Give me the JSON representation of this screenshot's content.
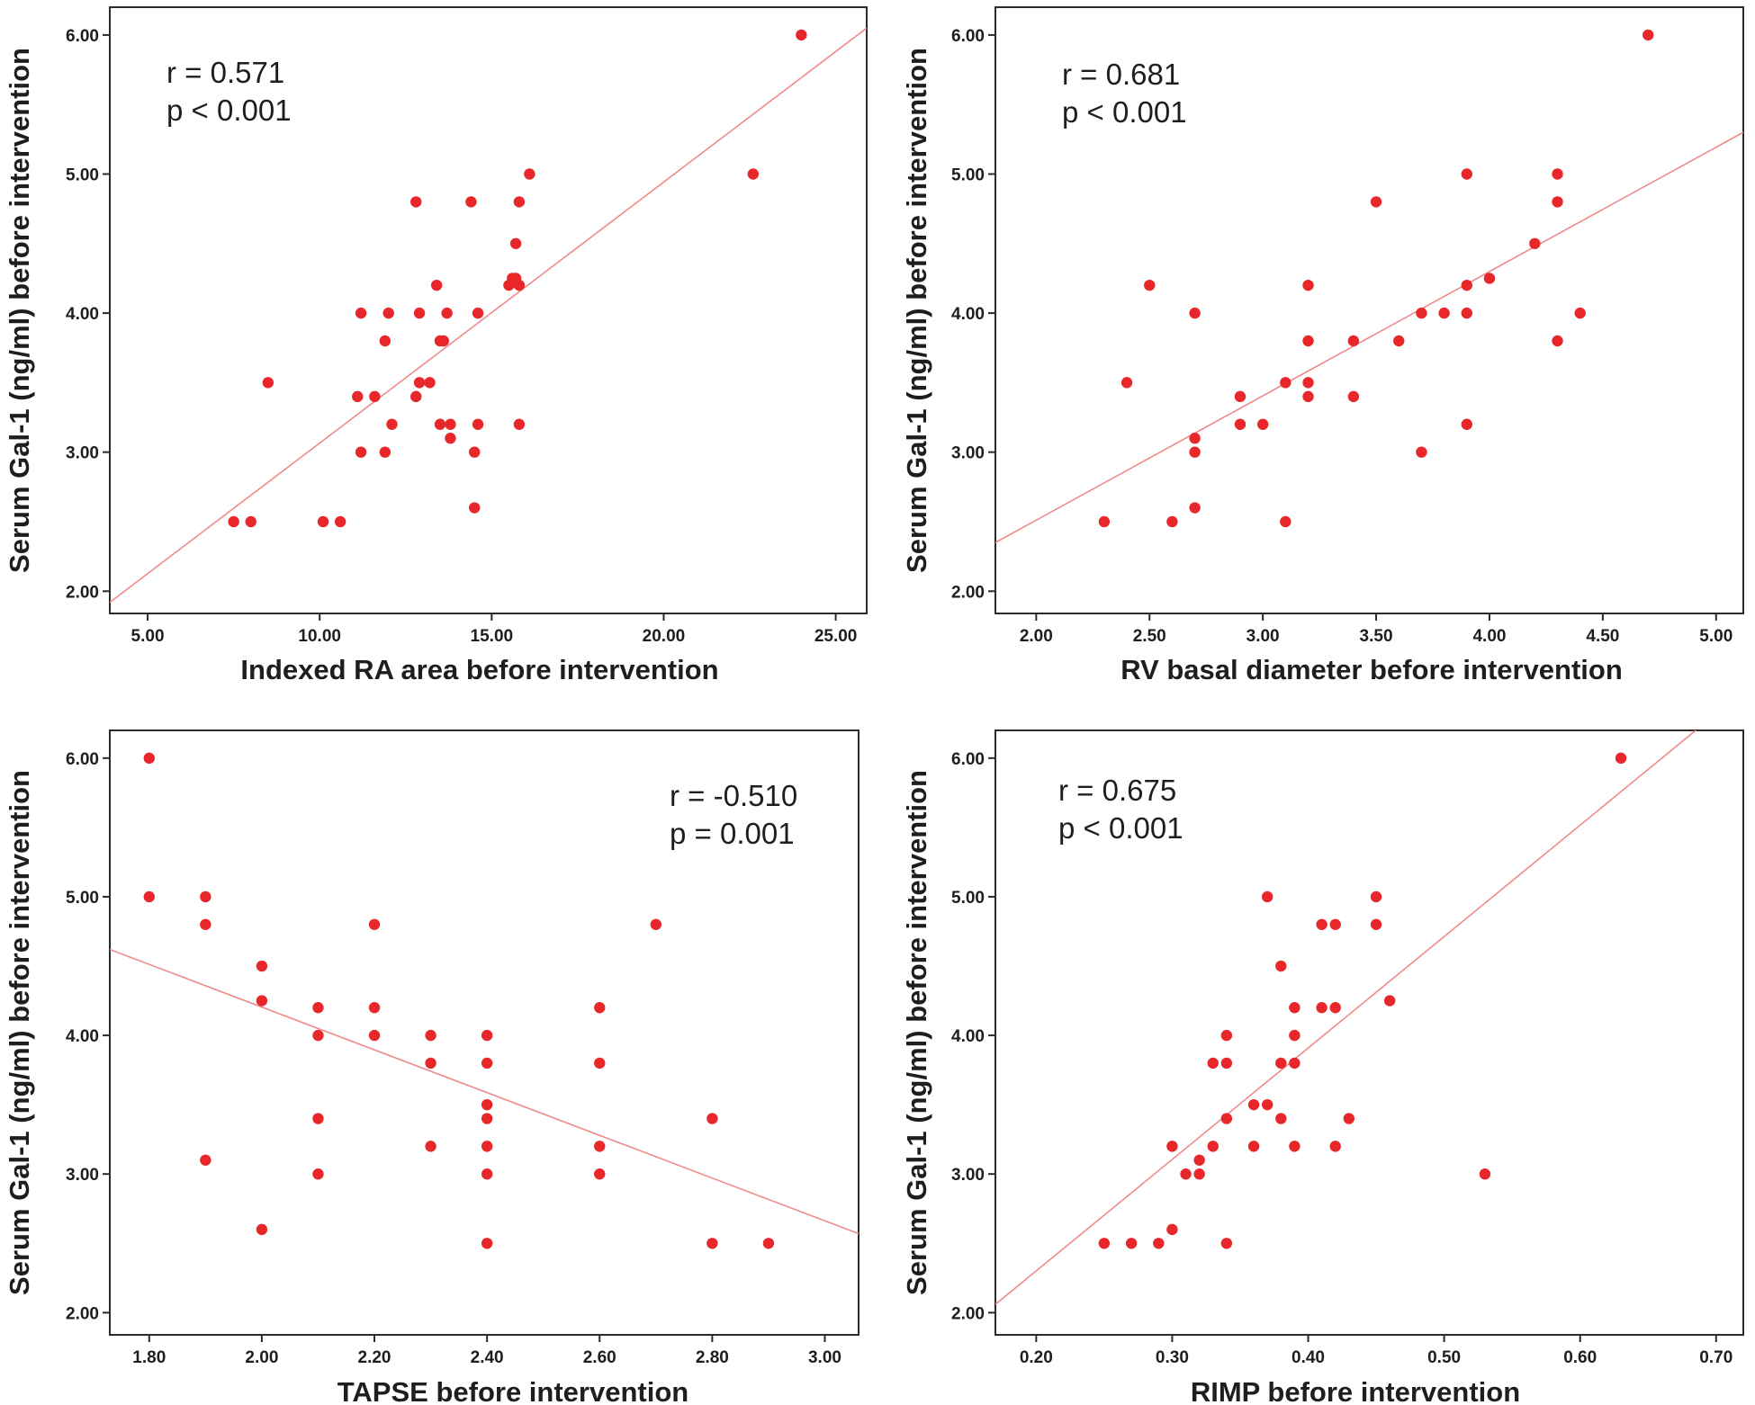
{
  "colors": {
    "point": "#e8272b",
    "fit_line": "#ee8a8a",
    "frame": "#2b2b2b",
    "text": "#1e1e1e"
  },
  "chart_data": [
    {
      "id": "ra",
      "type": "scatter",
      "xlabel": "Indexed RA area before intervention",
      "ylabel": "Serum Gal-1 (ng/ml) before intervention",
      "xlim": [
        3.9,
        25.9
      ],
      "ylim": [
        1.84,
        6.2
      ],
      "xticks": [
        5,
        10,
        15,
        20,
        25
      ],
      "xtick_labels": [
        "5.00",
        "10.00",
        "15.00",
        "20.00",
        "25.00"
      ],
      "yticks": [
        2,
        3,
        4,
        5,
        6
      ],
      "ytick_labels": [
        "2.00",
        "3.00",
        "4.00",
        "5.00",
        "6.00"
      ],
      "annotation": [
        "r = 0.571",
        "p < 0.001"
      ],
      "annotation_position": "top-left",
      "fit_line": [
        [
          3.9,
          1.92
        ],
        [
          25.9,
          6.05
        ]
      ],
      "points": [
        [
          24.0,
          6.0
        ],
        [
          22.6,
          5.0
        ],
        [
          16.1,
          5.0
        ],
        [
          12.8,
          4.8
        ],
        [
          14.4,
          4.8
        ],
        [
          15.8,
          4.8
        ],
        [
          15.7,
          4.5
        ],
        [
          15.6,
          4.25
        ],
        [
          15.7,
          4.25
        ],
        [
          15.5,
          4.2
        ],
        [
          15.8,
          4.2
        ],
        [
          13.4,
          4.2
        ],
        [
          11.2,
          4.0
        ],
        [
          12.0,
          4.0
        ],
        [
          12.9,
          4.0
        ],
        [
          13.7,
          4.0
        ],
        [
          14.6,
          4.0
        ],
        [
          11.9,
          3.8
        ],
        [
          13.5,
          3.8
        ],
        [
          13.6,
          3.8
        ],
        [
          8.5,
          3.5
        ],
        [
          12.9,
          3.5
        ],
        [
          13.2,
          3.5
        ],
        [
          11.1,
          3.4
        ],
        [
          11.6,
          3.4
        ],
        [
          12.8,
          3.4
        ],
        [
          12.1,
          3.2
        ],
        [
          13.5,
          3.2
        ],
        [
          13.8,
          3.2
        ],
        [
          14.6,
          3.2
        ],
        [
          15.8,
          3.2
        ],
        [
          13.8,
          3.1
        ],
        [
          11.2,
          3.0
        ],
        [
          11.9,
          3.0
        ],
        [
          14.5,
          3.0
        ],
        [
          14.5,
          2.6
        ],
        [
          7.5,
          2.5
        ],
        [
          8.0,
          2.5
        ],
        [
          10.1,
          2.5
        ],
        [
          10.6,
          2.5
        ]
      ]
    },
    {
      "id": "rv",
      "type": "scatter",
      "xlabel": "RV basal diameter before intervention",
      "ylabel": "Serum Gal-1 (ng/ml) before intervention",
      "xlim": [
        1.82,
        5.12
      ],
      "ylim": [
        1.84,
        6.2
      ],
      "xticks": [
        2.0,
        2.5,
        3.0,
        3.5,
        4.0,
        4.5,
        5.0
      ],
      "xtick_labels": [
        "2.00",
        "2.50",
        "3.00",
        "3.50",
        "4.00",
        "4.50",
        "5.00"
      ],
      "yticks": [
        2,
        3,
        4,
        5,
        6
      ],
      "ytick_labels": [
        "2.00",
        "3.00",
        "4.00",
        "5.00",
        "6.00"
      ],
      "annotation": [
        "r = 0.681",
        "p < 0.001"
      ],
      "annotation_position": "top-left",
      "fit_line": [
        [
          1.82,
          2.35
        ],
        [
          5.12,
          5.3
        ]
      ],
      "points": [
        [
          4.7,
          6.0
        ],
        [
          3.9,
          5.0
        ],
        [
          4.3,
          5.0
        ],
        [
          3.5,
          4.8
        ],
        [
          4.3,
          4.8
        ],
        [
          4.2,
          4.5
        ],
        [
          4.0,
          4.25
        ],
        [
          2.5,
          4.2
        ],
        [
          3.2,
          4.2
        ],
        [
          3.9,
          4.2
        ],
        [
          2.7,
          4.0
        ],
        [
          3.7,
          4.0
        ],
        [
          3.8,
          4.0
        ],
        [
          3.9,
          4.0
        ],
        [
          4.4,
          4.0
        ],
        [
          3.2,
          3.8
        ],
        [
          3.4,
          3.8
        ],
        [
          3.6,
          3.8
        ],
        [
          4.3,
          3.8
        ],
        [
          2.4,
          3.5
        ],
        [
          3.1,
          3.5
        ],
        [
          3.2,
          3.5
        ],
        [
          2.9,
          3.4
        ],
        [
          3.2,
          3.4
        ],
        [
          3.4,
          3.4
        ],
        [
          2.9,
          3.2
        ],
        [
          3.0,
          3.2
        ],
        [
          3.9,
          3.2
        ],
        [
          2.7,
          3.1
        ],
        [
          2.7,
          3.0
        ],
        [
          3.7,
          3.0
        ],
        [
          2.7,
          2.6
        ],
        [
          2.3,
          2.5
        ],
        [
          2.6,
          2.5
        ],
        [
          3.1,
          2.5
        ]
      ]
    },
    {
      "id": "tapse",
      "type": "scatter",
      "xlabel": "TAPSE before intervention",
      "ylabel": "Serum Gal-1 (ng/ml) before intervention",
      "xlim": [
        1.73,
        3.06
      ],
      "ylim": [
        1.84,
        6.2
      ],
      "xticks": [
        1.8,
        2.0,
        2.2,
        2.4,
        2.6,
        2.8,
        3.0
      ],
      "xtick_labels": [
        "1.80",
        "2.00",
        "2.20",
        "2.40",
        "2.60",
        "2.80",
        "3.00"
      ],
      "yticks": [
        2,
        3,
        4,
        5,
        6
      ],
      "ytick_labels": [
        "2.00",
        "3.00",
        "4.00",
        "5.00",
        "6.00"
      ],
      "annotation": [
        "r = -0.510",
        "p = 0.001"
      ],
      "annotation_position": "top-right",
      "fit_line": [
        [
          1.73,
          4.62
        ],
        [
          3.06,
          2.57
        ]
      ],
      "points": [
        [
          1.8,
          6.0
        ],
        [
          1.8,
          5.0
        ],
        [
          1.9,
          5.0
        ],
        [
          1.9,
          4.8
        ],
        [
          2.2,
          4.8
        ],
        [
          2.7,
          4.8
        ],
        [
          2.0,
          4.5
        ],
        [
          2.0,
          4.25
        ],
        [
          2.1,
          4.2
        ],
        [
          2.2,
          4.2
        ],
        [
          2.6,
          4.2
        ],
        [
          2.1,
          4.0
        ],
        [
          2.2,
          4.0
        ],
        [
          2.3,
          4.0
        ],
        [
          2.4,
          4.0
        ],
        [
          2.3,
          3.8
        ],
        [
          2.4,
          3.8
        ],
        [
          2.6,
          3.8
        ],
        [
          2.4,
          3.5
        ],
        [
          2.1,
          3.4
        ],
        [
          2.4,
          3.4
        ],
        [
          2.8,
          3.4
        ],
        [
          2.3,
          3.2
        ],
        [
          2.4,
          3.2
        ],
        [
          2.6,
          3.2
        ],
        [
          1.9,
          3.1
        ],
        [
          2.1,
          3.0
        ],
        [
          2.4,
          3.0
        ],
        [
          2.6,
          3.0
        ],
        [
          2.0,
          2.6
        ],
        [
          2.4,
          2.5
        ],
        [
          2.8,
          2.5
        ],
        [
          2.9,
          2.5
        ]
      ]
    },
    {
      "id": "rimp",
      "type": "scatter",
      "xlabel": "RIMP before intervention",
      "ylabel": "Serum Gal-1 (ng/ml) before intervention",
      "xlim": [
        0.17,
        0.72
      ],
      "ylim": [
        1.84,
        6.2
      ],
      "xticks": [
        0.2,
        0.3,
        0.4,
        0.5,
        0.6,
        0.7
      ],
      "xtick_labels": [
        "0.20",
        "0.30",
        "0.40",
        "0.50",
        "0.60",
        "0.70"
      ],
      "yticks": [
        2,
        3,
        4,
        5,
        6
      ],
      "ytick_labels": [
        "2.00",
        "3.00",
        "4.00",
        "5.00",
        "6.00"
      ],
      "annotation": [
        "r = 0.675",
        "p < 0.001"
      ],
      "annotation_position": "top-left",
      "fit_line": [
        [
          0.17,
          2.06
        ],
        [
          0.69,
          6.24
        ]
      ],
      "points": [
        [
          0.63,
          6.0
        ],
        [
          0.37,
          5.0
        ],
        [
          0.45,
          5.0
        ],
        [
          0.41,
          4.8
        ],
        [
          0.42,
          4.8
        ],
        [
          0.45,
          4.8
        ],
        [
          0.38,
          4.5
        ],
        [
          0.46,
          4.25
        ],
        [
          0.39,
          4.2
        ],
        [
          0.41,
          4.2
        ],
        [
          0.42,
          4.2
        ],
        [
          0.34,
          4.0
        ],
        [
          0.39,
          4.0
        ],
        [
          0.33,
          3.8
        ],
        [
          0.34,
          3.8
        ],
        [
          0.38,
          3.8
        ],
        [
          0.39,
          3.8
        ],
        [
          0.36,
          3.5
        ],
        [
          0.37,
          3.5
        ],
        [
          0.34,
          3.4
        ],
        [
          0.38,
          3.4
        ],
        [
          0.43,
          3.4
        ],
        [
          0.3,
          3.2
        ],
        [
          0.33,
          3.2
        ],
        [
          0.36,
          3.2
        ],
        [
          0.39,
          3.2
        ],
        [
          0.42,
          3.2
        ],
        [
          0.32,
          3.1
        ],
        [
          0.31,
          3.0
        ],
        [
          0.32,
          3.0
        ],
        [
          0.53,
          3.0
        ],
        [
          0.3,
          2.6
        ],
        [
          0.25,
          2.5
        ],
        [
          0.27,
          2.5
        ],
        [
          0.29,
          2.5
        ],
        [
          0.34,
          2.5
        ]
      ]
    }
  ]
}
